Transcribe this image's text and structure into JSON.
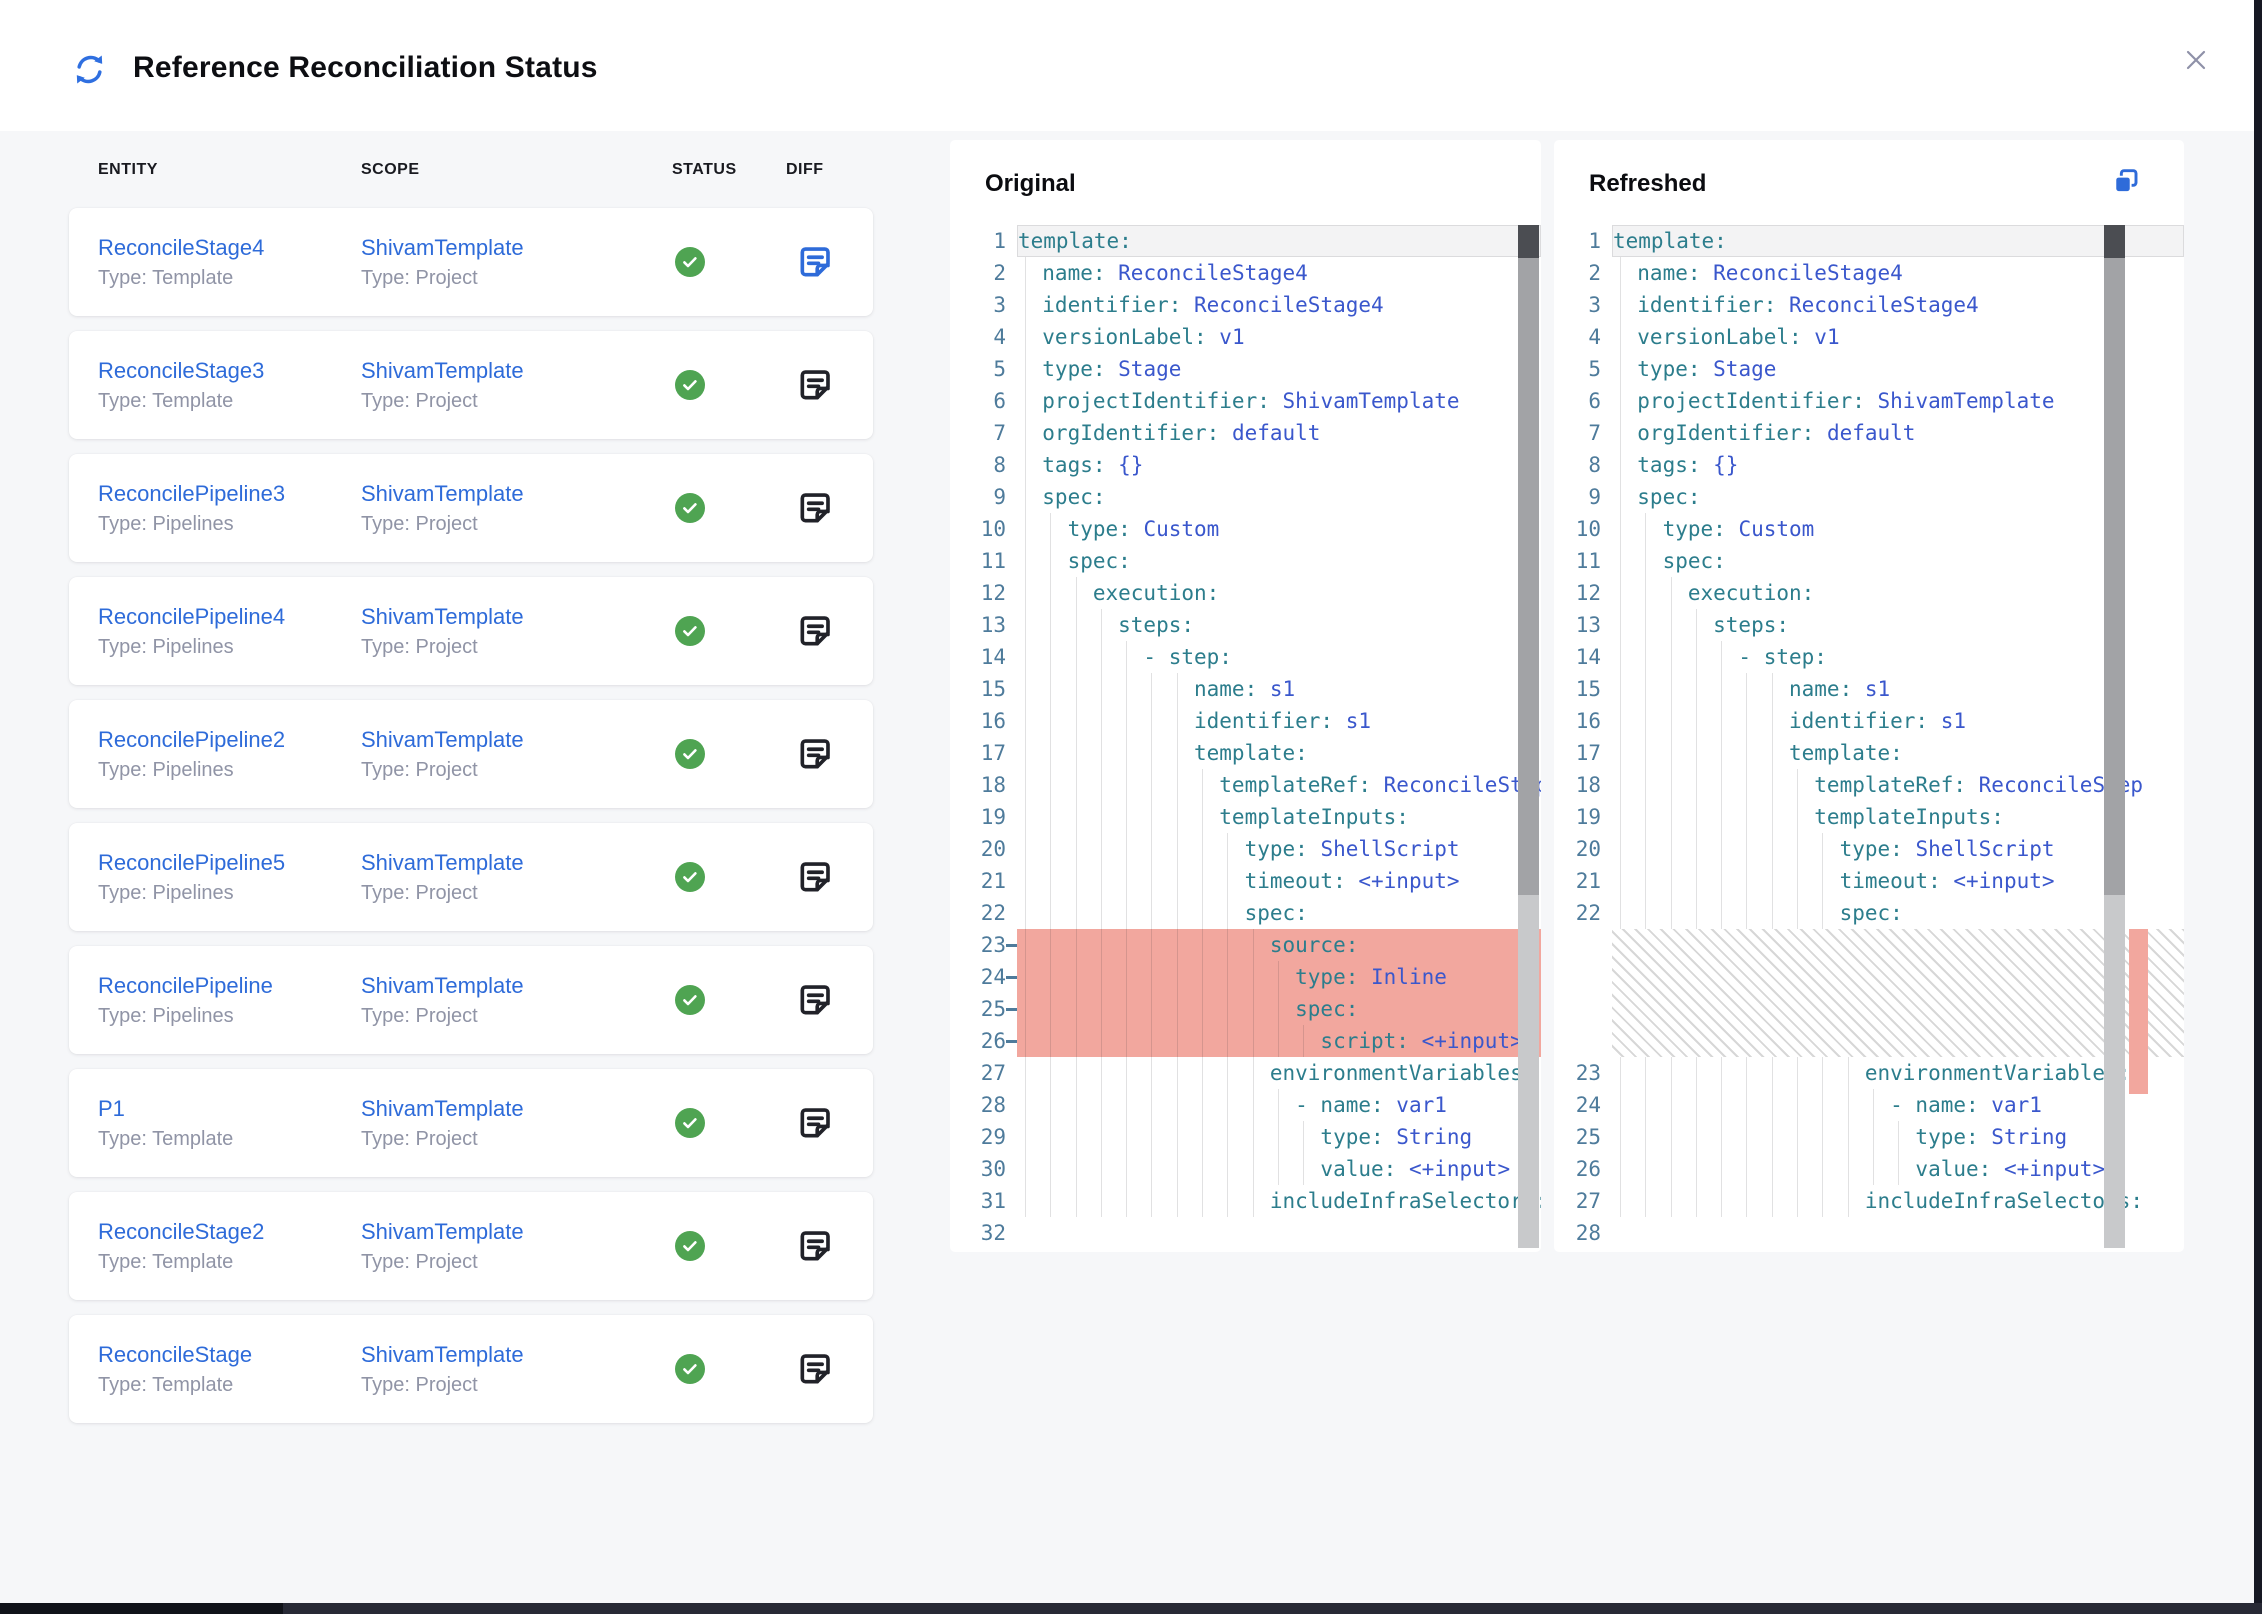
{
  "window": {
    "title": "Reference Reconciliation Status"
  },
  "colors": {
    "accent_blue": "#2E6BD9",
    "success_green": "#4FA452",
    "removed_red": "#F2A79E",
    "code_key_teal": "#2C7D8C",
    "code_value_blue": "#3A57CC",
    "line_number_blue": "#4E7B9B"
  },
  "table": {
    "columns": [
      "ENTITY",
      "SCOPE",
      "STATUS",
      "DIFF"
    ],
    "rows": [
      {
        "entity": "ReconcileStage4",
        "entity_type": "Type: Template",
        "scope": "ShivamTemplate",
        "scope_type": "Type: Project",
        "status": "success",
        "diff_highlighted": true
      },
      {
        "entity": "ReconcileStage3",
        "entity_type": "Type: Template",
        "scope": "ShivamTemplate",
        "scope_type": "Type: Project",
        "status": "success",
        "diff_highlighted": false
      },
      {
        "entity": "ReconcilePipeline3",
        "entity_type": "Type: Pipelines",
        "scope": "ShivamTemplate",
        "scope_type": "Type: Project",
        "status": "success",
        "diff_highlighted": false
      },
      {
        "entity": "ReconcilePipeline4",
        "entity_type": "Type: Pipelines",
        "scope": "ShivamTemplate",
        "scope_type": "Type: Project",
        "status": "success",
        "diff_highlighted": false
      },
      {
        "entity": "ReconcilePipeline2",
        "entity_type": "Type: Pipelines",
        "scope": "ShivamTemplate",
        "scope_type": "Type: Project",
        "status": "success",
        "diff_highlighted": false
      },
      {
        "entity": "ReconcilePipeline5",
        "entity_type": "Type: Pipelines",
        "scope": "ShivamTemplate",
        "scope_type": "Type: Project",
        "status": "success",
        "diff_highlighted": false
      },
      {
        "entity": "ReconcilePipeline",
        "entity_type": "Type: Pipelines",
        "scope": "ShivamTemplate",
        "scope_type": "Type: Project",
        "status": "success",
        "diff_highlighted": false
      },
      {
        "entity": "P1",
        "entity_type": "Type: Template",
        "scope": "ShivamTemplate",
        "scope_type": "Type: Project",
        "status": "success",
        "diff_highlighted": false
      },
      {
        "entity": "ReconcileStage2",
        "entity_type": "Type: Template",
        "scope": "ShivamTemplate",
        "scope_type": "Type: Project",
        "status": "success",
        "diff_highlighted": false
      },
      {
        "entity": "ReconcileStage",
        "entity_type": "Type: Template",
        "scope": "ShivamTemplate",
        "scope_type": "Type: Project",
        "status": "success",
        "diff_highlighted": false
      }
    ]
  },
  "panels": {
    "original": {
      "label": "Original",
      "lines": [
        {
          "n": 1,
          "indent": 0,
          "key": "template",
          "current": true
        },
        {
          "n": 2,
          "indent": 2,
          "key": "name",
          "value": "ReconcileStage4"
        },
        {
          "n": 3,
          "indent": 2,
          "key": "identifier",
          "value": "ReconcileStage4"
        },
        {
          "n": 4,
          "indent": 2,
          "key": "versionLabel",
          "value": "v1"
        },
        {
          "n": 5,
          "indent": 2,
          "key": "type",
          "value": "Stage"
        },
        {
          "n": 6,
          "indent": 2,
          "key": "projectIdentifier",
          "value": "ShivamTemplate"
        },
        {
          "n": 7,
          "indent": 2,
          "key": "orgIdentifier",
          "value": "default"
        },
        {
          "n": 8,
          "indent": 2,
          "key": "tags",
          "value": "{}"
        },
        {
          "n": 9,
          "indent": 2,
          "key": "spec"
        },
        {
          "n": 10,
          "indent": 4,
          "key": "type",
          "value": "Custom"
        },
        {
          "n": 11,
          "indent": 4,
          "key": "spec"
        },
        {
          "n": 12,
          "indent": 6,
          "key": "execution"
        },
        {
          "n": 13,
          "indent": 8,
          "key": "steps"
        },
        {
          "n": 14,
          "indent": 10,
          "dash": true,
          "key": "step"
        },
        {
          "n": 15,
          "indent": 14,
          "key": "name",
          "value": "s1"
        },
        {
          "n": 16,
          "indent": 14,
          "key": "identifier",
          "value": "s1"
        },
        {
          "n": 17,
          "indent": 14,
          "key": "template"
        },
        {
          "n": 18,
          "indent": 16,
          "key": "templateRef",
          "value": "ReconcileStep"
        },
        {
          "n": 19,
          "indent": 16,
          "key": "templateInputs"
        },
        {
          "n": 20,
          "indent": 18,
          "key": "type",
          "value": "ShellScript"
        },
        {
          "n": 21,
          "indent": 18,
          "key": "timeout",
          "value": "<+input>"
        },
        {
          "n": 22,
          "indent": 18,
          "key": "spec"
        },
        {
          "n": 23,
          "indent": 20,
          "key": "source",
          "deleted": true
        },
        {
          "n": 24,
          "indent": 22,
          "key": "type",
          "value": "Inline",
          "deleted": true
        },
        {
          "n": 25,
          "indent": 22,
          "key": "spec",
          "deleted": true
        },
        {
          "n": 26,
          "indent": 24,
          "key": "script",
          "value": "<+input>",
          "deleted": true
        },
        {
          "n": 27,
          "indent": 20,
          "key": "environmentVariables"
        },
        {
          "n": 28,
          "indent": 22,
          "dash": true,
          "key": "name",
          "value": "var1"
        },
        {
          "n": 29,
          "indent": 24,
          "key": "type",
          "value": "String"
        },
        {
          "n": 30,
          "indent": 24,
          "key": "value",
          "value": "<+input>"
        },
        {
          "n": 31,
          "indent": 20,
          "key": "includeInfraSelectors"
        },
        {
          "n": 32,
          "indent": 0
        }
      ]
    },
    "refreshed": {
      "label": "Refreshed",
      "lines": [
        {
          "n": 1,
          "indent": 0,
          "key": "template",
          "current": true
        },
        {
          "n": 2,
          "indent": 2,
          "key": "name",
          "value": "ReconcileStage4"
        },
        {
          "n": 3,
          "indent": 2,
          "key": "identifier",
          "value": "ReconcileStage4"
        },
        {
          "n": 4,
          "indent": 2,
          "key": "versionLabel",
          "value": "v1"
        },
        {
          "n": 5,
          "indent": 2,
          "key": "type",
          "value": "Stage"
        },
        {
          "n": 6,
          "indent": 2,
          "key": "projectIdentifier",
          "value": "ShivamTemplate"
        },
        {
          "n": 7,
          "indent": 2,
          "key": "orgIdentifier",
          "value": "default"
        },
        {
          "n": 8,
          "indent": 2,
          "key": "tags",
          "value": "{}"
        },
        {
          "n": 9,
          "indent": 2,
          "key": "spec"
        },
        {
          "n": 10,
          "indent": 4,
          "key": "type",
          "value": "Custom"
        },
        {
          "n": 11,
          "indent": 4,
          "key": "spec"
        },
        {
          "n": 12,
          "indent": 6,
          "key": "execution"
        },
        {
          "n": 13,
          "indent": 8,
          "key": "steps"
        },
        {
          "n": 14,
          "indent": 10,
          "dash": true,
          "key": "step"
        },
        {
          "n": 15,
          "indent": 14,
          "key": "name",
          "value": "s1"
        },
        {
          "n": 16,
          "indent": 14,
          "key": "identifier",
          "value": "s1"
        },
        {
          "n": 17,
          "indent": 14,
          "key": "template"
        },
        {
          "n": 18,
          "indent": 16,
          "key": "templateRef",
          "value": "ReconcileStep"
        },
        {
          "n": 19,
          "indent": 16,
          "key": "templateInputs"
        },
        {
          "n": 20,
          "indent": 18,
          "key": "type",
          "value": "ShellScript"
        },
        {
          "n": 21,
          "indent": 18,
          "key": "timeout",
          "value": "<+input>"
        },
        {
          "n": 22,
          "indent": 18,
          "key": "spec"
        },
        {
          "hatch": true
        },
        {
          "n": 23,
          "indent": 20,
          "key": "environmentVariables"
        },
        {
          "n": 24,
          "indent": 22,
          "dash": true,
          "key": "name",
          "value": "var1"
        },
        {
          "n": 25,
          "indent": 24,
          "key": "type",
          "value": "String"
        },
        {
          "n": 26,
          "indent": 24,
          "key": "value",
          "value": "<+input>"
        },
        {
          "n": 27,
          "indent": 20,
          "key": "includeInfraSelectors"
        },
        {
          "n": 28,
          "indent": 0
        }
      ]
    }
  }
}
